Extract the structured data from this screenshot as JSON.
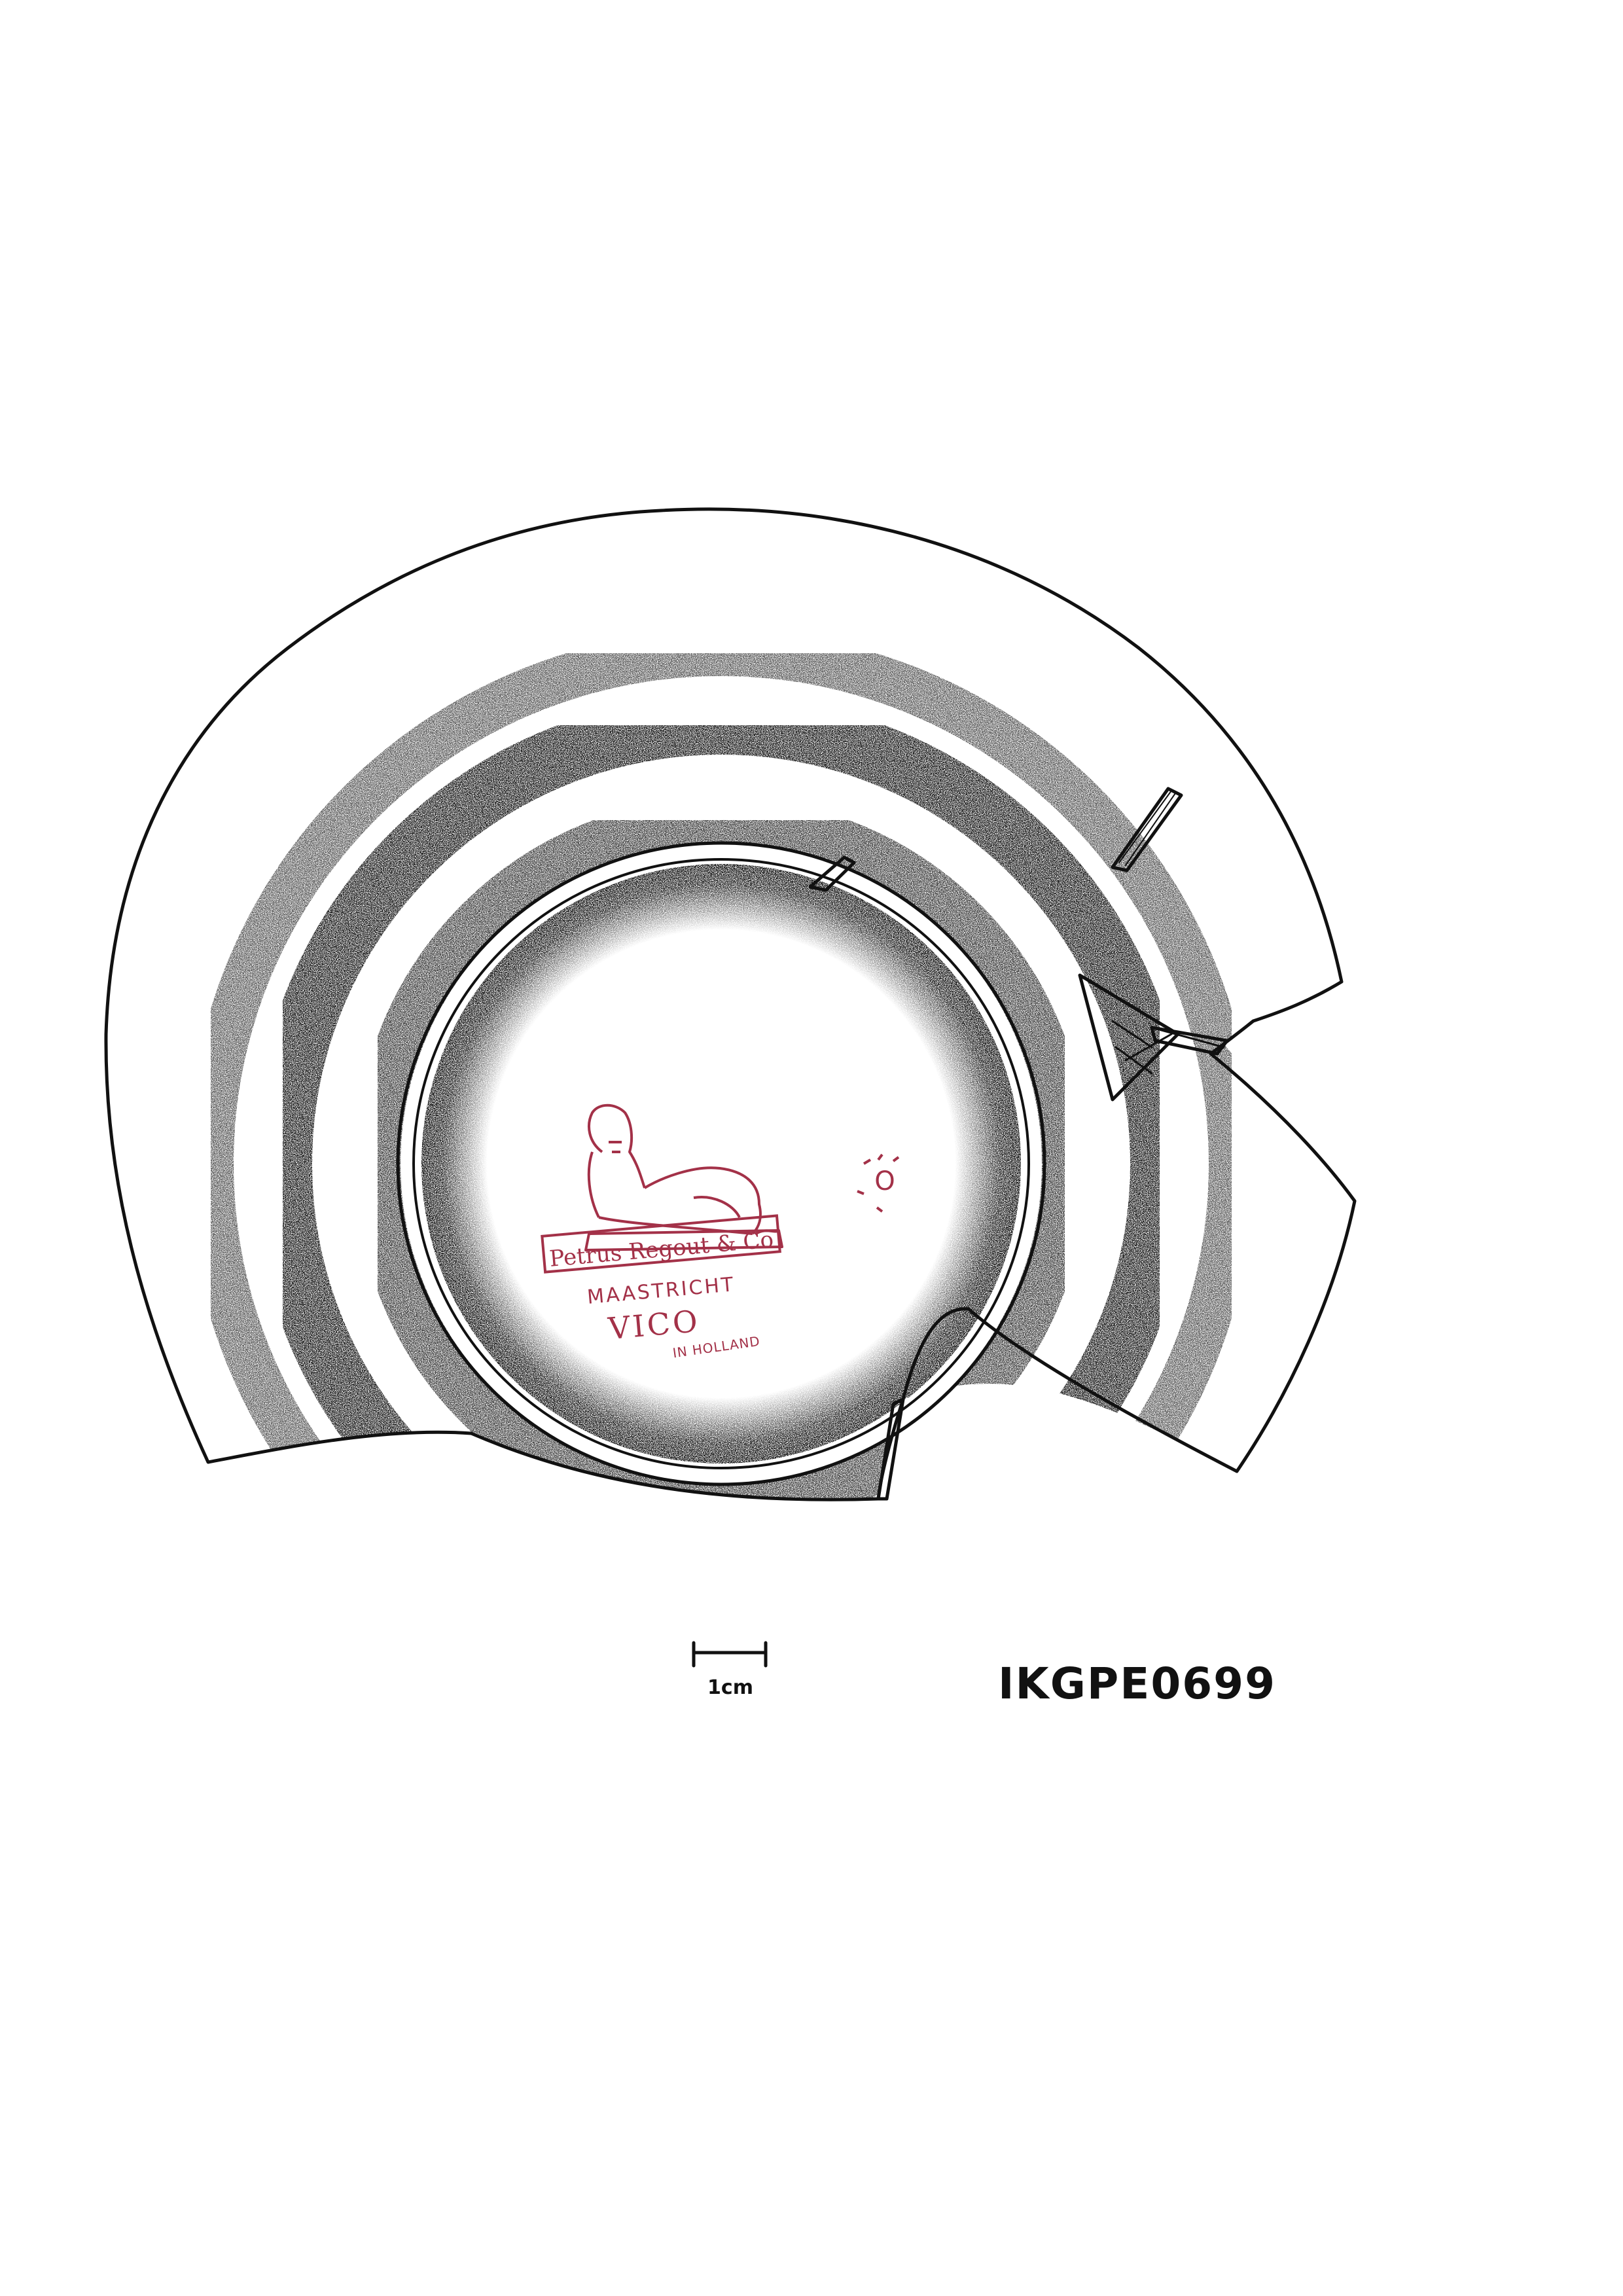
{
  "catalogue_id": "IKGPE0699",
  "scale_bar": {
    "label": "1cm"
  },
  "makers_mark": {
    "color": "#a33148",
    "line1": "Petrus Regout & Co",
    "line2": "MAASTRICHT",
    "line3": "VICO",
    "line4": "IN HOLLAND",
    "emblem": "sphinx-icon"
  },
  "secondary_mark": {
    "text": "O",
    "color": "#a33148"
  },
  "colors": {
    "ink": "#111111",
    "paper": "#ffffff"
  }
}
